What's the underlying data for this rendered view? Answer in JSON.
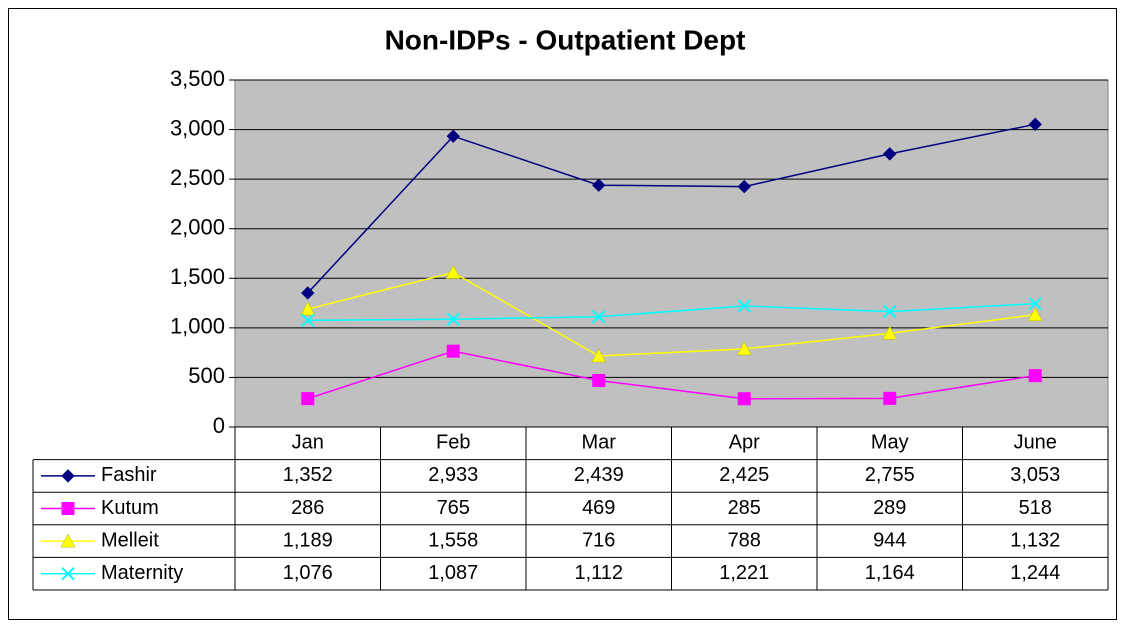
{
  "chart_data": {
    "type": "line",
    "title": "Non-IDPs - Outpatient Dept",
    "categories": [
      "Jan",
      "Feb",
      "Mar",
      "Apr",
      "May",
      "June"
    ],
    "series": [
      {
        "name": "Fashir",
        "color": "#000080",
        "marker": "diamond",
        "values": [
          1352,
          2933,
          2439,
          2425,
          2755,
          3053
        ],
        "value_labels": [
          "1,352",
          "2,933",
          "2,439",
          "2,425",
          "2,755",
          "3,053"
        ]
      },
      {
        "name": "Kutum",
        "color": "#ff00ff",
        "marker": "square",
        "values": [
          286,
          765,
          469,
          285,
          289,
          518
        ]
      },
      {
        "name": "Melleit",
        "color": "#ffff00",
        "marker": "triangle",
        "values": [
          1189,
          1558,
          716,
          788,
          944,
          1132
        ],
        "value_labels": [
          "1,189",
          "1,558",
          "716",
          "788",
          "944",
          "1,132"
        ]
      },
      {
        "name": "Maternity",
        "color": "#00ffff",
        "marker": "cross",
        "values": [
          1076,
          1087,
          1112,
          1221,
          1164,
          1244
        ],
        "value_labels": [
          "1,076",
          "1,087",
          "1,112",
          "1,221",
          "1,164",
          "1,244"
        ]
      }
    ],
    "ylim": [
      0,
      3500
    ],
    "yticks": [
      0,
      500,
      {
        "value": 1000,
        "label": "1,000"
      },
      {
        "value": 1500,
        "label": "1,500"
      },
      {
        "value": 2000,
        "label": "2,000"
      },
      {
        "value": 2500,
        "label": "2,500"
      },
      {
        "value": 3000,
        "label": "3,000"
      },
      {
        "value": 3500,
        "label": "3,500"
      }
    ],
    "grid": true,
    "plot_background": "#c0c0c0"
  }
}
